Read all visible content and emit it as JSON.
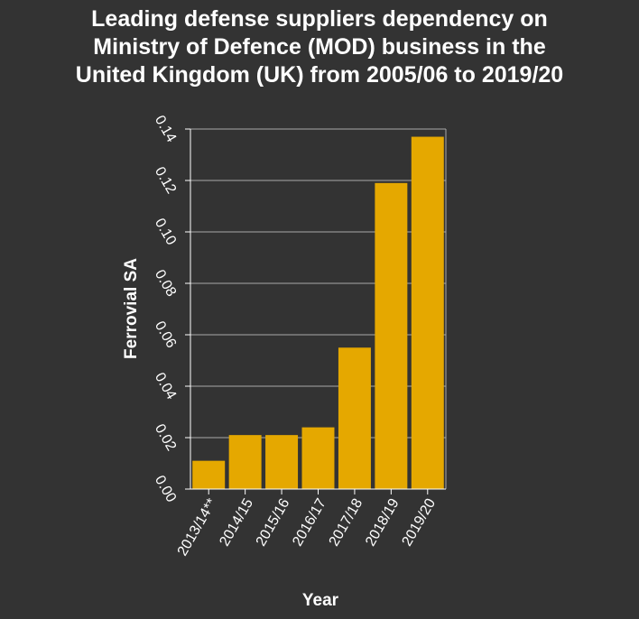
{
  "chart_data": {
    "type": "bar",
    "title_lines": [
      "Leading defense suppliers dependency on",
      "Ministry of Defence (MOD) business in the",
      "United Kingdom (UK) from 2005/06 to 2019/20"
    ],
    "categories": [
      "2013/14**",
      "2014/15",
      "2015/16",
      "2016/17",
      "2017/18",
      "2018/19",
      "2019/20"
    ],
    "values": [
      0.011,
      0.021,
      0.021,
      0.024,
      0.055,
      0.119,
      0.137
    ],
    "xlabel": "Year",
    "ylabel": "Ferrovial SA",
    "ylim": [
      0,
      0.14
    ],
    "yticks": [
      "0.00",
      "0.02",
      "0.04",
      "0.06",
      "0.08",
      "0.10",
      "0.12",
      "0.14"
    ],
    "grid": true,
    "bar_color": "#e5a800",
    "background_color": "#333333",
    "grid_color": "#aaaaaa"
  }
}
